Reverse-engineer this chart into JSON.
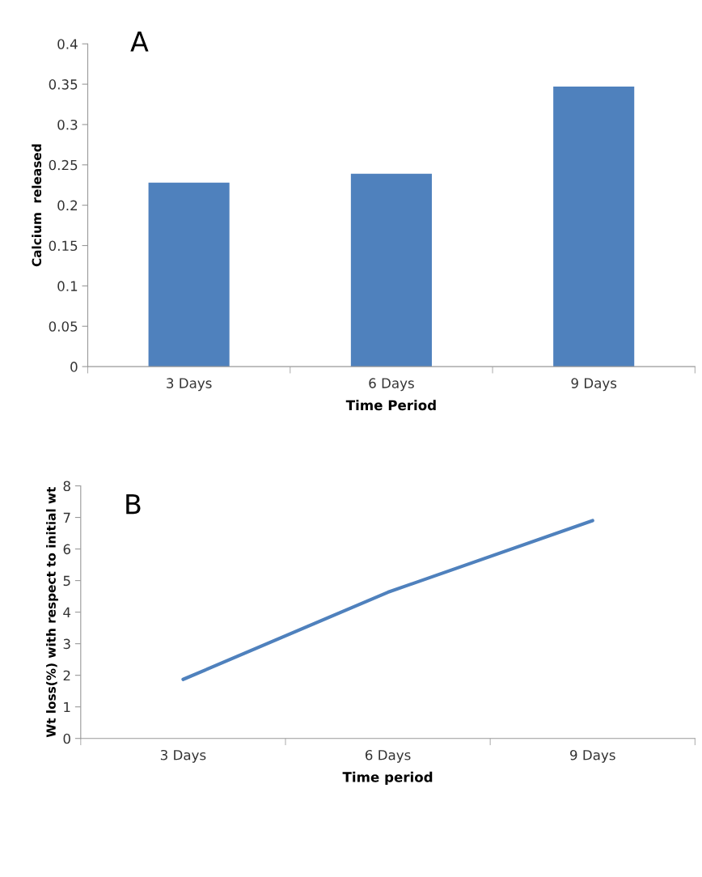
{
  "chart_data": [
    {
      "type": "bar",
      "title": "A",
      "xlabel": "Time Period",
      "ylabel": "Calcium  released",
      "categories": [
        "3 Days",
        "6 Days",
        "9 Days"
      ],
      "values": [
        0.228,
        0.239,
        0.347
      ],
      "color": "#4f81bd",
      "ylim": [
        0,
        0.4
      ],
      "yticks": [
        {
          "value": 0,
          "label": "0"
        },
        0.05,
        0.1,
        0.15,
        0.2,
        0.25,
        0.3,
        0.35,
        0.4
      ],
      "grid": false
    },
    {
      "type": "line",
      "title": "B",
      "xlabel": "Time period",
      "ylabel": "Wt loss(%) with respect to initial wt",
      "categories": [
        "3 Days",
        "6 Days",
        "9 Days"
      ],
      "values": [
        1.87,
        4.63,
        6.9
      ],
      "color": "#4f81bd",
      "ylim": [
        0,
        8
      ],
      "yticks": [
        0,
        1,
        2,
        3,
        4,
        5,
        6,
        7,
        8
      ],
      "grid": false,
      "marker": "none"
    }
  ]
}
